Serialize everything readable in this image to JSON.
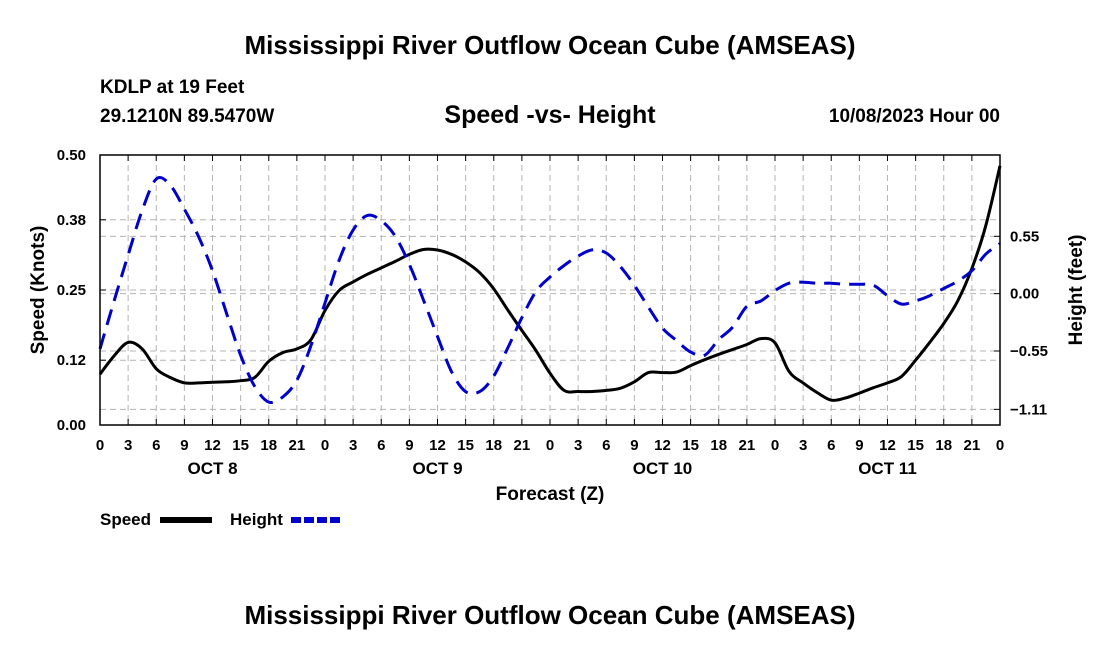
{
  "chart_data": {
    "type": "line",
    "title": "Mississippi River Outflow Ocean Cube (AMSEAS)",
    "subtitle": "Speed -vs- Height",
    "station": "KDLP at 19 Feet",
    "location": "29.1210N  89.5470W",
    "datetime": "10/08/2023 Hour 00",
    "xlabel": "Forecast (Z)",
    "ylabel_left": "Speed (Knots)",
    "ylabel_right": "Height (feet)",
    "x_hours": [
      0,
      3,
      6,
      9,
      12,
      15,
      18,
      21,
      0,
      3,
      6,
      9,
      12,
      15,
      18,
      21,
      0,
      3,
      6,
      9,
      12,
      15,
      18,
      21,
      0,
      3,
      6,
      9,
      12,
      15,
      18,
      21,
      0
    ],
    "day_labels": [
      {
        "label": "OCT 8",
        "center_hour": 12
      },
      {
        "label": "OCT 9",
        "center_hour": 36
      },
      {
        "label": "OCT 10",
        "center_hour": 60
      },
      {
        "label": "OCT 11",
        "center_hour": 84
      }
    ],
    "xlim": [
      0,
      96
    ],
    "ylim_left": [
      0,
      0.5
    ],
    "yticks_left": [
      "0.00",
      "0.12",
      "0.25",
      "0.38",
      "0.50"
    ],
    "ylim_right": [
      -1.26,
      1.33
    ],
    "yticks_right": [
      {
        "value": 0.55,
        "label": "0.55"
      },
      {
        "value": 0.0,
        "label": "0.00"
      },
      {
        "value": -0.55,
        "label": "−0.55"
      },
      {
        "value": -1.11,
        "label": "−1.11"
      }
    ],
    "grid": true,
    "series": [
      {
        "name": "Speed",
        "axis": "left",
        "color": "#000000",
        "style": "solid",
        "x": [
          0,
          1.5,
          3,
          4.5,
          6,
          7.5,
          9,
          10.5,
          12,
          13.5,
          15,
          16.5,
          18,
          19.5,
          21,
          22.5,
          24,
          25.5,
          27,
          28.5,
          30,
          31.5,
          33,
          34.5,
          36,
          37.5,
          39,
          40.5,
          42,
          43.5,
          45,
          46.5,
          48,
          49.5,
          51,
          52.5,
          54,
          55.5,
          57,
          58.5,
          60,
          61.5,
          63,
          64.5,
          66,
          67.5,
          69,
          70.5,
          72,
          73.5,
          75,
          76.5,
          78,
          79.5,
          81,
          82.5,
          84,
          85.5,
          87,
          88.5,
          90,
          91.5,
          93,
          94.5,
          96
        ],
        "values": [
          0.094,
          0.128,
          0.153,
          0.141,
          0.104,
          0.088,
          0.078,
          0.078,
          0.079,
          0.08,
          0.082,
          0.088,
          0.118,
          0.134,
          0.141,
          0.158,
          0.212,
          0.249,
          0.265,
          0.279,
          0.291,
          0.303,
          0.316,
          0.325,
          0.324,
          0.316,
          0.302,
          0.282,
          0.252,
          0.213,
          0.175,
          0.138,
          0.096,
          0.064,
          0.062,
          0.062,
          0.064,
          0.068,
          0.08,
          0.097,
          0.097,
          0.098,
          0.11,
          0.121,
          0.131,
          0.14,
          0.149,
          0.16,
          0.152,
          0.099,
          0.078,
          0.06,
          0.046,
          0.05,
          0.059,
          0.069,
          0.078,
          0.09,
          0.12,
          0.153,
          0.188,
          0.23,
          0.29,
          0.37,
          0.48
        ]
      },
      {
        "name": "Height",
        "axis": "right",
        "color": "#0000cc",
        "style": "dashed",
        "x": [
          0,
          1.5,
          3,
          4.5,
          6,
          7.5,
          9,
          10.5,
          12,
          13.5,
          15,
          16.5,
          18,
          19.5,
          21,
          22.5,
          24,
          25.5,
          27,
          28.5,
          30,
          31.5,
          33,
          34.5,
          36,
          37.5,
          39,
          40.5,
          42,
          43.5,
          45,
          46.5,
          48,
          49.5,
          51,
          52.5,
          54,
          55.5,
          57,
          58.5,
          60,
          61.5,
          63,
          64.5,
          66,
          67.5,
          69,
          70.5,
          72,
          73.5,
          75,
          76.5,
          78,
          79.5,
          81,
          82.5,
          84,
          85.5,
          87,
          88.5,
          90,
          91.5,
          93,
          94.5,
          96
        ],
        "values": [
          -0.53,
          -0.07,
          0.37,
          0.8,
          1.1,
          1.04,
          0.81,
          0.55,
          0.22,
          -0.19,
          -0.59,
          -0.89,
          -1.04,
          -0.99,
          -0.83,
          -0.5,
          -0.09,
          0.32,
          0.61,
          0.75,
          0.7,
          0.55,
          0.28,
          -0.06,
          -0.41,
          -0.75,
          -0.94,
          -0.94,
          -0.79,
          -0.52,
          -0.23,
          0.02,
          0.16,
          0.27,
          0.36,
          0.42,
          0.39,
          0.26,
          0.08,
          -0.13,
          -0.33,
          -0.45,
          -0.56,
          -0.59,
          -0.44,
          -0.32,
          -0.12,
          -0.07,
          0.03,
          0.1,
          0.11,
          0.1,
          0.1,
          0.09,
          0.09,
          0.08,
          -0.02,
          -0.1,
          -0.07,
          -0.02,
          0.05,
          0.12,
          0.22,
          0.38,
          0.48
        ]
      }
    ]
  },
  "legend": {
    "items": [
      {
        "label": "Speed",
        "color": "#000000",
        "style": "solid"
      },
      {
        "label": "Height",
        "color": "#0000cc",
        "style": "dashed"
      }
    ]
  },
  "footer_title": "Mississippi River Outflow Ocean Cube (AMSEAS)"
}
